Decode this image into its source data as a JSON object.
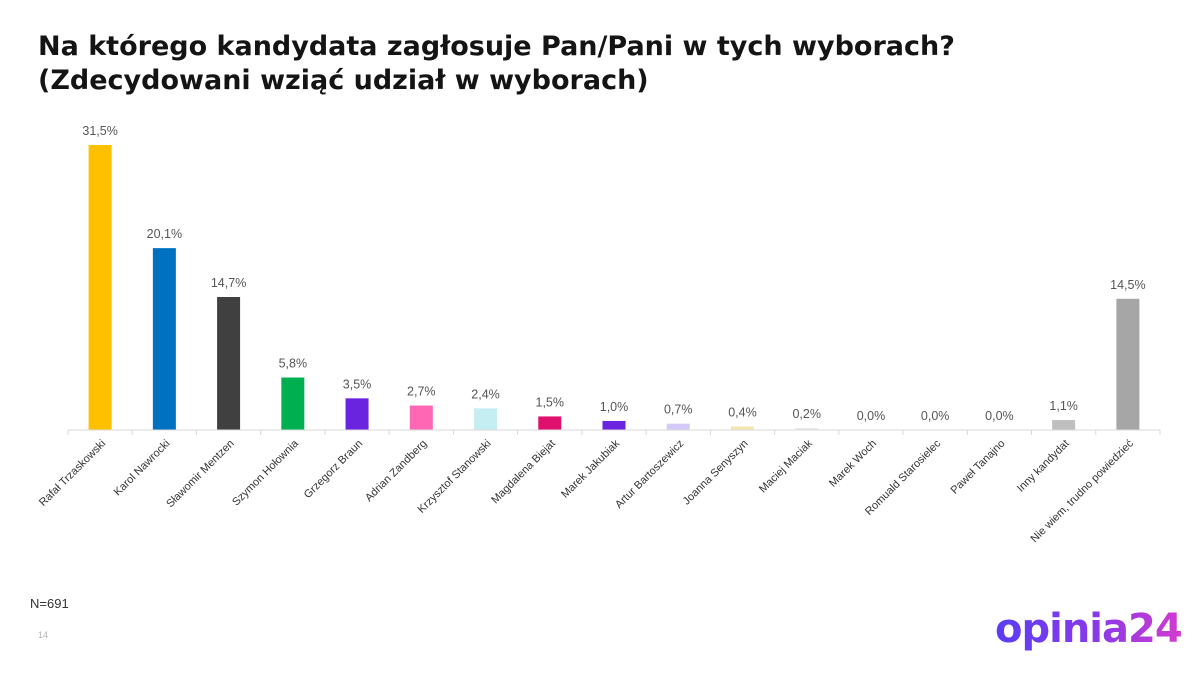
{
  "chart_data": {
    "type": "bar",
    "title": "Na którego kandydata zagłosuje Pan/Pani w tych wyborach?",
    "subtitle": "(Zdecydowani wziąć udział w wyborach)",
    "categories": [
      "Rafał Trzaskowski",
      "Karol Nawrocki",
      "Sławomir Mentzen",
      "Szymon Hołownia",
      "Grzegorz Braun",
      "Adrian Zandberg",
      "Krzysztof Stanowski",
      "Magdalena Biejat",
      "Marek Jakubiak",
      "Artur Bartoszewicz",
      "Joanna Senyszyn",
      "Maciej Maciak",
      "Marek Woch",
      "Romuald Starosielec",
      "Paweł Tanajno",
      "Inny kandydat",
      "Nie wiem, trudno powiedzieć"
    ],
    "values": [
      31.5,
      20.1,
      14.7,
      5.8,
      3.5,
      2.7,
      2.4,
      1.5,
      1.0,
      0.7,
      0.4,
      0.2,
      0.0,
      0.0,
      0.0,
      1.1,
      14.5
    ],
    "value_labels": [
      "31,5%",
      "20,1%",
      "14,7%",
      "5,8%",
      "3,5%",
      "2,7%",
      "2,4%",
      "1,5%",
      "1,0%",
      "0,7%",
      "0,4%",
      "0,2%",
      "0,0%",
      "0,0%",
      "0,0%",
      "1,1%",
      "14,5%"
    ],
    "colors": [
      "#ffc000",
      "#0070c0",
      "#404040",
      "#00b050",
      "#6a24e0",
      "#ff66b3",
      "#c5eef3",
      "#e0116e",
      "#6a24e0",
      "#d4c9f7",
      "#f4e8b0",
      "#e8e8e8",
      "#e8e8e8",
      "#e8e8e8",
      "#e8e8e8",
      "#bfbfbf",
      "#a6a6a6"
    ],
    "ylim": [
      0,
      32
    ],
    "grid": false,
    "legend": "none"
  },
  "footer": {
    "sample": "N=691",
    "page": "14"
  },
  "logo": {
    "text": "opinia24"
  }
}
